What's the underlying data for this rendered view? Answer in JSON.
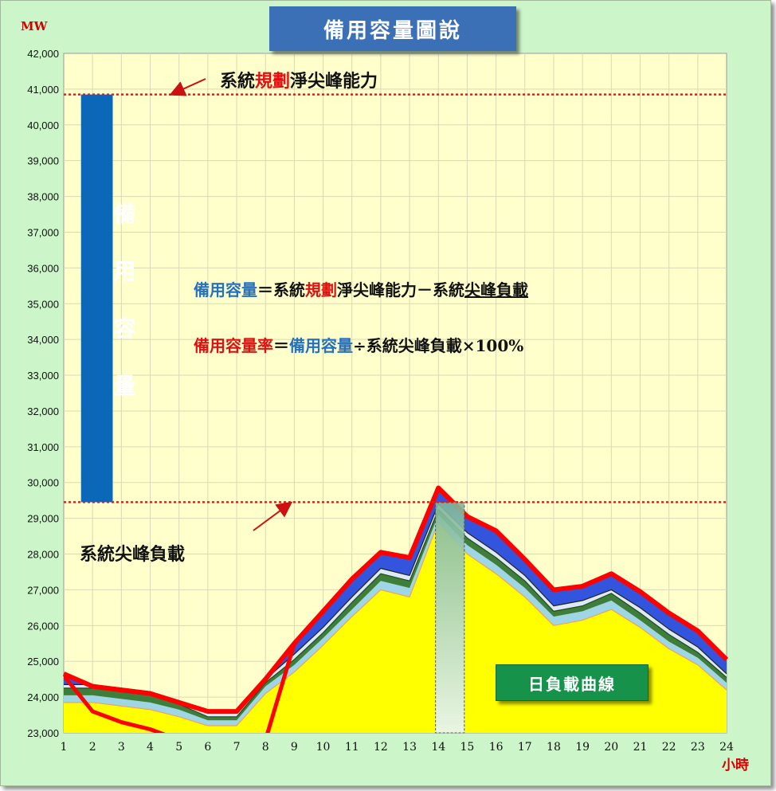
{
  "title": "備用容量圖說",
  "y_unit": "MW",
  "x_unit": "小時",
  "legend_label": "日負載曲線",
  "reserve_bar_label": "備用容量",
  "annotations": {
    "capacity_a": "系統",
    "capacity_b": "規劃",
    "capacity_c": "淨尖峰能力",
    "peak_load": "系統尖峰負載"
  },
  "formula1": {
    "a": "備用容量",
    "b": "＝系統",
    "c": "規劃",
    "d": "淨尖峰能力－系統",
    "e": "尖峰負載"
  },
  "formula2": {
    "a": "備用容量率",
    "b": "＝",
    "c": "備用容量",
    "d": "÷系統尖峰負載×100%"
  },
  "colors": {
    "plot_bg": "#ffffcc",
    "frame_bg": "#ccf5c9",
    "title_box": "#3b6fb6",
    "reserve_bar": "#0b67b8",
    "reference_line": "#e02020",
    "yellow_fill": "#ffff00",
    "light_blue_band": "#9ed6e6",
    "green_band": "#3e7d3a",
    "blue_band": "#3355dd",
    "red_curve": "#ff0000",
    "legend_box": "#16924a"
  },
  "chart_data": {
    "type": "area",
    "x": [
      1,
      2,
      3,
      4,
      5,
      6,
      7,
      8,
      9,
      10,
      11,
      12,
      13,
      14,
      15,
      16,
      17,
      18,
      19,
      20,
      21,
      22,
      23,
      24
    ],
    "x_ticks": [
      "1",
      "2",
      "3",
      "4",
      "5",
      "6",
      "7",
      "8",
      "9",
      "10",
      "11",
      "12",
      "13",
      "14",
      "15",
      "16",
      "17",
      "18",
      "19",
      "20",
      "21",
      "22",
      "23",
      "24"
    ],
    "ylim": [
      23000,
      42000
    ],
    "y_ticks": [
      "23,000",
      "24,000",
      "25,000",
      "26,000",
      "27,000",
      "28,000",
      "29,000",
      "30,000",
      "31,000",
      "32,000",
      "33,000",
      "34,000",
      "35,000",
      "36,000",
      "37,000",
      "38,000",
      "39,000",
      "40,000",
      "41,000",
      "42,000"
    ],
    "series": [
      {
        "values": [
          23850,
          23850,
          23750,
          23650,
          23450,
          23200,
          23200,
          24100,
          24700,
          25450,
          26250,
          27000,
          26800,
          28900,
          28000,
          27450,
          26800,
          26000,
          26150,
          26450,
          25950,
          25350,
          24900,
          24200
        ]
      },
      {
        "values": [
          24050,
          24050,
          23950,
          23850,
          23650,
          23350,
          23350,
          24300,
          24900,
          25650,
          26450,
          27250,
          27050,
          29100,
          28250,
          27700,
          27050,
          26250,
          26400,
          26700,
          26150,
          25550,
          25100,
          24400
        ]
      },
      {
        "values": [
          24250,
          24250,
          24150,
          24050,
          23800,
          23450,
          23450,
          24400,
          25050,
          25800,
          26650,
          27450,
          27250,
          29250,
          28450,
          27900,
          27250,
          26400,
          26550,
          26900,
          26350,
          25750,
          25250,
          24550
        ]
      },
      {
        "values": [
          24350,
          24350,
          24250,
          24150,
          23900,
          23550,
          23550,
          24500,
          25200,
          25950,
          26800,
          27600,
          27400,
          29400,
          28600,
          28050,
          27400,
          26550,
          26700,
          27000,
          26500,
          25900,
          25400,
          24650
        ]
      },
      {
        "values": [
          24650,
          24300,
          24200,
          24100,
          23850,
          23600,
          23600,
          24500,
          25500,
          26400,
          27300,
          28050,
          27900,
          29850,
          29050,
          28650,
          27850,
          27000,
          27100,
          27450,
          26950,
          26350,
          25850,
          25050
        ]
      }
    ],
    "overlay_line": {
      "x": [
        1,
        2,
        3,
        4,
        5,
        8,
        9
      ],
      "values": [
        24600,
        23600,
        23300,
        23100,
        22800,
        22800,
        25500
      ]
    },
    "reference_lines": [
      {
        "label": "系統規劃淨尖峰能力",
        "value": 40850
      },
      {
        "label": "系統尖峰負載",
        "value": 29450
      }
    ],
    "reserve_bar": {
      "x": [
        1.6,
        2.7
      ],
      "y": [
        29450,
        40850
      ]
    },
    "peak_highlight": {
      "x": [
        13.9,
        14.9
      ],
      "y": [
        23000,
        29450
      ]
    },
    "grid": true
  }
}
